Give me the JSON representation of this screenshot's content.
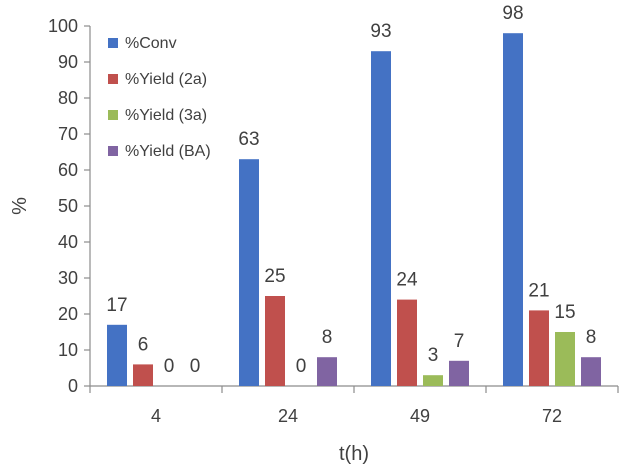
{
  "chart_data": {
    "type": "bar",
    "title": "",
    "xlabel": "t(h)",
    "ylabel": "%",
    "ylim": [
      0,
      100
    ],
    "yticks": [
      0,
      10,
      20,
      30,
      40,
      50,
      60,
      70,
      80,
      90,
      100
    ],
    "categories": [
      "4",
      "24",
      "49",
      "72"
    ],
    "grid": false,
    "legend_position": "top-left",
    "series": [
      {
        "name": "%Conv",
        "color": "#4472C4",
        "values": [
          17,
          63,
          93,
          98
        ]
      },
      {
        "name": "%Yield (2a)",
        "color": "#C0504D",
        "values": [
          6,
          25,
          24,
          21
        ]
      },
      {
        "name": "%Yield (3a)",
        "color": "#9BBB59",
        "values": [
          0,
          0,
          3,
          15
        ]
      },
      {
        "name": "%Yield (BA)",
        "color": "#8064A2",
        "values": [
          0,
          8,
          7,
          8
        ]
      }
    ]
  }
}
